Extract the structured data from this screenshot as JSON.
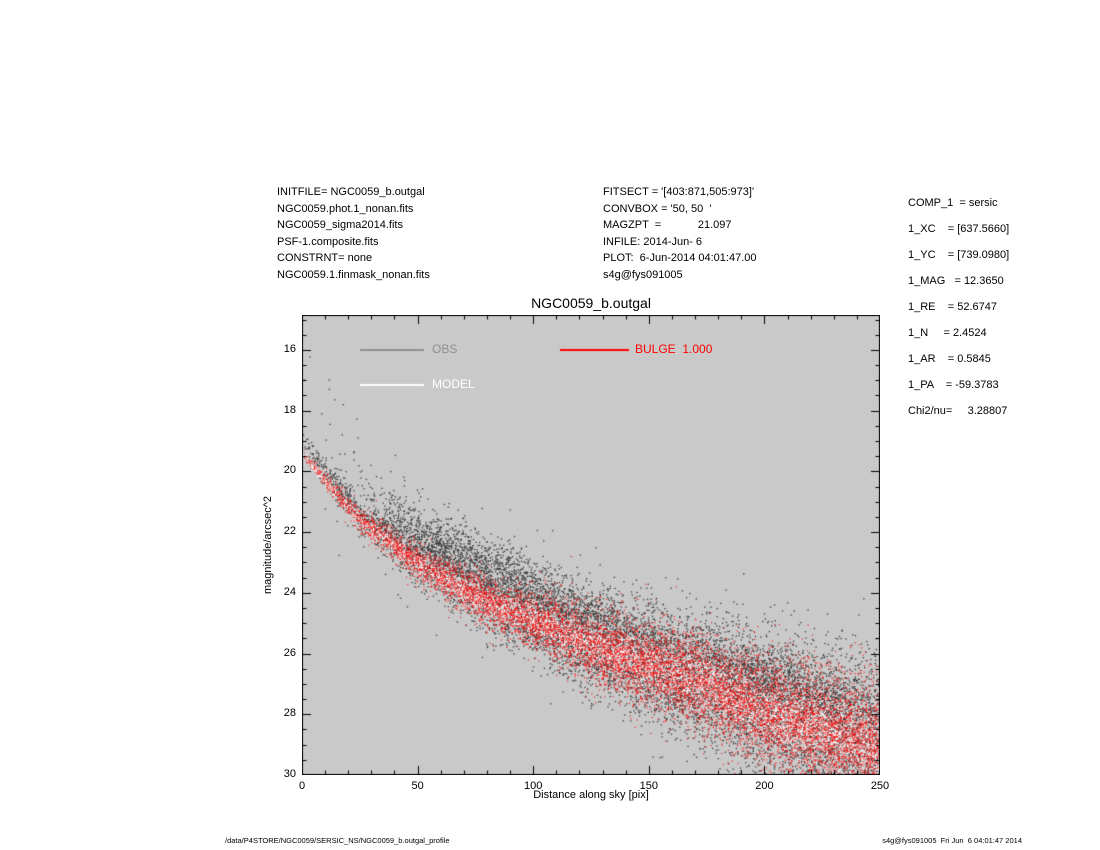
{
  "header": {
    "left_lines": [
      "INITFILE= NGC0059_b.outgal",
      "NGC0059.phot.1_nonan.fits",
      "NGC0059_sigma2014.fits",
      "PSF-1.composite.fits",
      "CONSTRNT= none",
      "NGC0059.1.finmask_nonan.fits"
    ],
    "middle_lines": [
      "FITSECT = '[403:871,505:973]'",
      "CONVBOX = '50, 50  '",
      "MAGZPT  =            21.097",
      "INFILE: 2014-Jun- 6",
      "PLOT:  6-Jun-2014 04:01:47.00",
      "s4g@fys091005"
    ],
    "right_lines": [
      "COMP_1  = sersic",
      "1_XC    = [637.5660]",
      "1_YC    = [739.0980]",
      "1_MAG   = 12.3650",
      "1_RE    = 52.6747",
      "1_N     = 2.4524",
      "1_AR    = 0.5845",
      "1_PA    = -59.3783",
      "Chi2/nu=     3.28807"
    ]
  },
  "footer": {
    "left": "/data/P4STORE/NGC0059/SERSIC_NS/NGC0059_b.outgal_profile",
    "right": "s4g@fys091005  Fri Jun  6 04:01:47 2014"
  },
  "chart_data": {
    "type": "scatter",
    "title": "NGC0059_b.outgal",
    "xlabel": "Distance along sky [pix]",
    "ylabel": "magnitude/arcsec^2",
    "xlim": [
      0,
      250
    ],
    "ylim": [
      30,
      16
    ],
    "y_axis_inverted": true,
    "y_range_displayed": [
      14.85,
      30.0
    ],
    "x_ticks": [
      0,
      50,
      100,
      150,
      200,
      250
    ],
    "y_ticks": [
      16,
      18,
      20,
      22,
      24,
      26,
      28,
      30
    ],
    "x_minor_step": 10,
    "y_minor_step": 0.5,
    "plot_background": "#c9c9c9",
    "axis_color": "#000000",
    "legend": [
      {
        "label": "OBS",
        "color": "#8f8f8f"
      },
      {
        "label": "MODEL",
        "color": "#ffffff"
      },
      {
        "label": "BULGE  1.000",
        "color": "#ff0000"
      }
    ],
    "series": [
      {
        "name": "OBS",
        "role": "observed surface-brightness points",
        "color": "#3d3d3d",
        "profile_x": [
          0,
          10,
          25,
          50,
          75,
          100,
          125,
          150,
          175,
          200,
          225,
          250
        ],
        "profile_mu": [
          18.9,
          20.0,
          21.4,
          22.8,
          23.9,
          24.8,
          25.6,
          26.3,
          27.0,
          27.7,
          28.3,
          28.9
        ],
        "scatter_sigma": [
          0.15,
          0.22,
          0.3,
          0.42,
          0.55,
          0.7,
          0.85,
          0.95,
          1.05,
          1.15,
          1.25,
          1.35
        ],
        "count": 8500,
        "clumps": [
          {
            "x": 55,
            "x_sigma": 12,
            "dmu": -0.7,
            "mu_sigma": 0.35,
            "count": 350
          },
          {
            "x": 80,
            "x_sigma": 22,
            "dmu": -1.1,
            "mu_sigma": 0.45,
            "count": 900
          },
          {
            "x": 125,
            "x_sigma": 18,
            "dmu": -0.8,
            "mu_sigma": 0.45,
            "count": 600
          },
          {
            "x": 205,
            "x_sigma": 22,
            "dmu": -0.9,
            "mu_sigma": 0.55,
            "count": 800
          }
        ],
        "outlier_count": 160
      },
      {
        "name": "MODEL",
        "role": "total model points",
        "color": "#ffffff",
        "profile_x": [
          0,
          10,
          25,
          50,
          75,
          100,
          125,
          150,
          175,
          200,
          225,
          250
        ],
        "profile_mu": [
          19.4,
          20.3,
          21.6,
          23.0,
          24.1,
          24.9,
          25.7,
          26.4,
          27.0,
          27.9,
          28.5,
          29.1
        ],
        "scatter_sigma": [
          0.05,
          0.08,
          0.11,
          0.15,
          0.2,
          0.25,
          0.3,
          0.35,
          0.4,
          0.45,
          0.5,
          0.55
        ],
        "count": 3800
      },
      {
        "name": "BULGE",
        "role": "sersic bulge component points",
        "bulge_to_total": 1.0,
        "color": "#ff1212",
        "profile_x": [
          0,
          10,
          25,
          50,
          75,
          100,
          125,
          150,
          175,
          200,
          225,
          250
        ],
        "profile_mu": [
          19.4,
          20.3,
          21.6,
          23.0,
          24.1,
          24.9,
          25.7,
          26.4,
          27.0,
          27.9,
          28.5,
          29.1
        ],
        "scatter_sigma": [
          0.1,
          0.15,
          0.22,
          0.3,
          0.4,
          0.5,
          0.6,
          0.7,
          0.8,
          0.9,
          1.0,
          1.1
        ],
        "count": 9500,
        "overlay_count": 2500
      }
    ]
  }
}
